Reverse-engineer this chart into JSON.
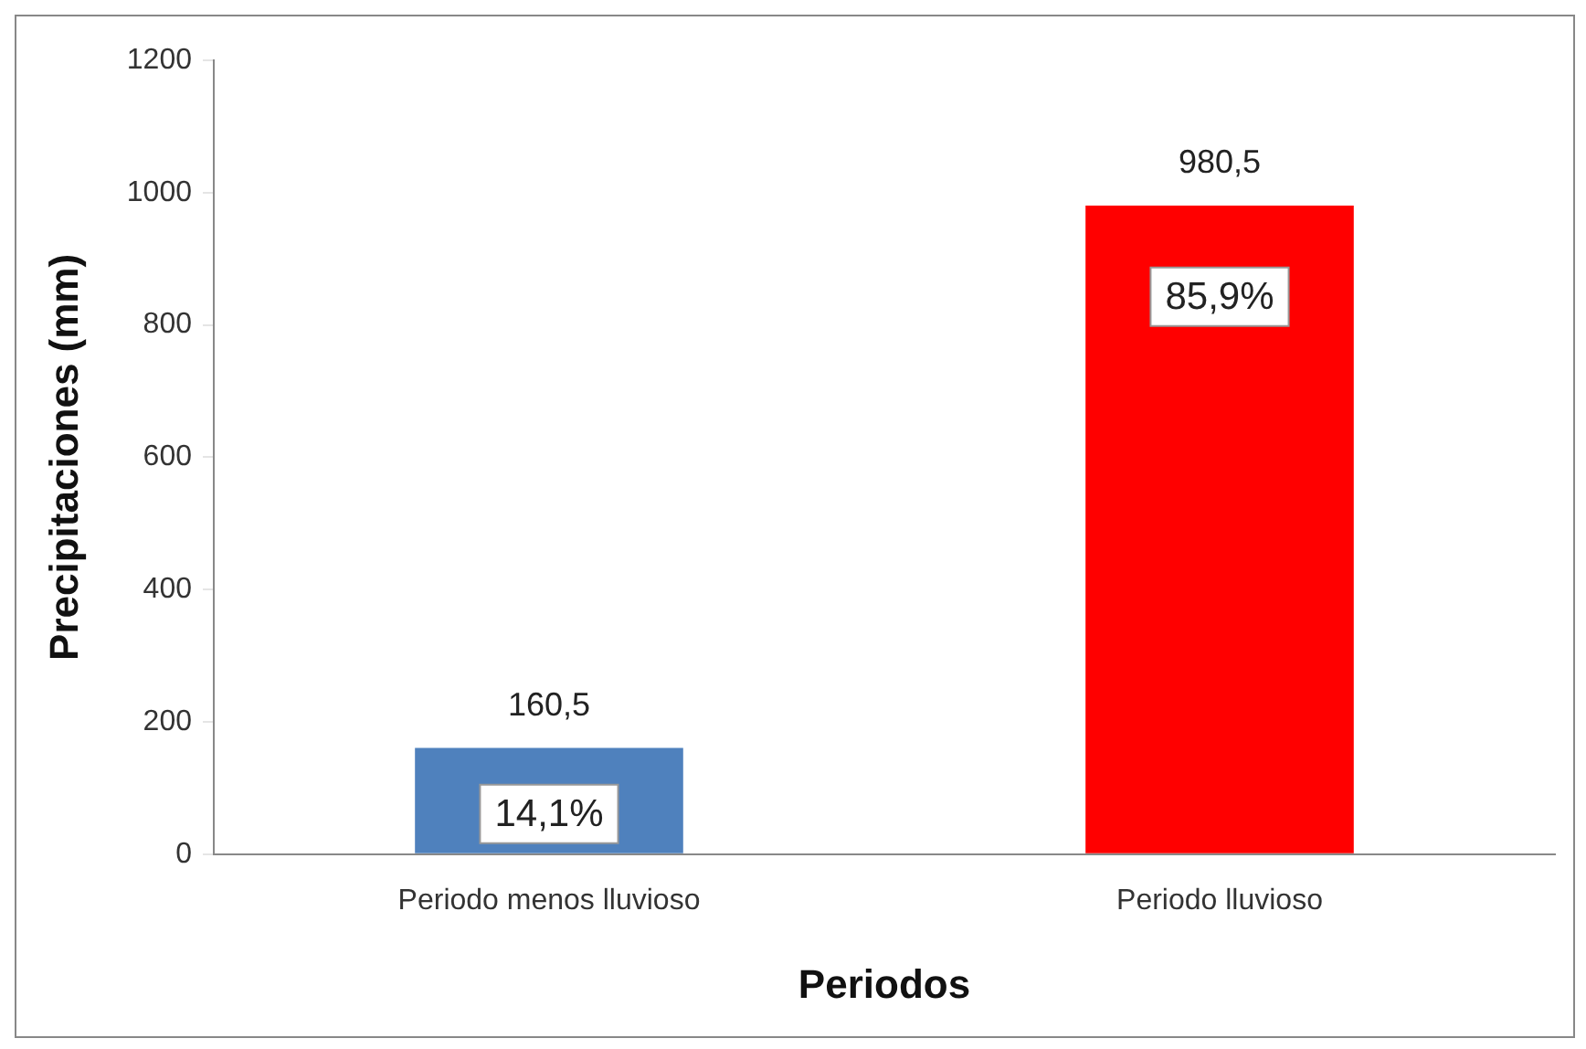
{
  "chart_data": {
    "type": "bar",
    "xlabel": "Periodos",
    "ylabel": "Precipitaciones (mm)",
    "categories": [
      "Periodo menos lluvioso",
      "Periodo lluvioso"
    ],
    "values": [
      160.5,
      980.5
    ],
    "colors": [
      "#4f81bd",
      "#ff0000"
    ],
    "value_labels": [
      "160,5",
      "980,5"
    ],
    "ylim": [
      0,
      1200
    ],
    "yticks": [
      0,
      200,
      400,
      600,
      800,
      1000,
      1200
    ],
    "grid": false,
    "legend": false,
    "annotations": [
      "14,1%",
      "85,9%"
    ]
  }
}
